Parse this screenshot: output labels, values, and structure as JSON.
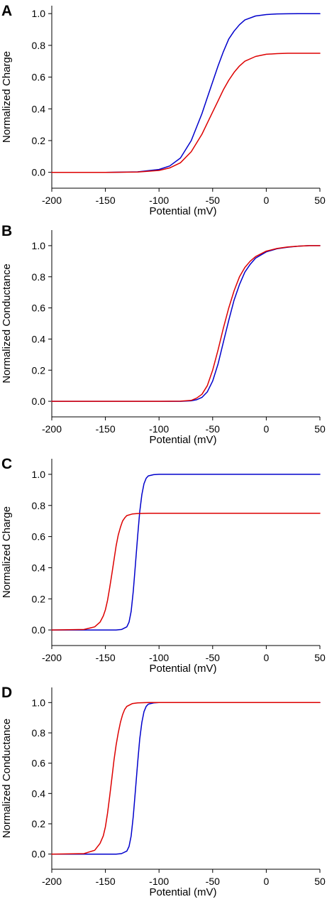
{
  "chart_data": [
    {
      "panel": "A",
      "type": "line",
      "xlabel": "Potential (mV)",
      "ylabel": "Normalized Charge",
      "xlim": [
        -200,
        50
      ],
      "ylim": [
        -0.1,
        1.05
      ],
      "xticks": [
        -200,
        -150,
        -100,
        -50,
        0,
        50
      ],
      "xtick_labels": [
        "-200",
        "-150",
        "-100",
        "-50",
        "0",
        "50"
      ],
      "yticks": [
        0.0,
        0.2,
        0.4,
        0.6,
        0.8,
        1.0
      ],
      "ytick_labels": [
        "0.0",
        "0.2",
        "0.4",
        "0.6",
        "0.8",
        "1.0"
      ],
      "grid": false,
      "series": [
        {
          "color": "#0000cc",
          "x": [
            -200,
            -150,
            -120,
            -100,
            -90,
            -80,
            -70,
            -60,
            -55,
            -50,
            -45,
            -40,
            -35,
            -30,
            -25,
            -20,
            -10,
            0,
            10,
            20,
            30,
            40,
            50
          ],
          "y": [
            0.0,
            0.0,
            0.003,
            0.018,
            0.04,
            0.09,
            0.2,
            0.37,
            0.47,
            0.57,
            0.67,
            0.76,
            0.84,
            0.89,
            0.93,
            0.96,
            0.985,
            0.994,
            0.998,
            0.999,
            1.0,
            1.0,
            1.0
          ]
        },
        {
          "color": "#dd0000",
          "x": [
            -200,
            -150,
            -120,
            -100,
            -90,
            -80,
            -70,
            -60,
            -55,
            -50,
            -45,
            -40,
            -35,
            -30,
            -25,
            -20,
            -10,
            0,
            10,
            20,
            30,
            40,
            50
          ],
          "y": [
            0.0,
            0.0,
            0.002,
            0.012,
            0.028,
            0.06,
            0.13,
            0.24,
            0.31,
            0.38,
            0.45,
            0.52,
            0.58,
            0.63,
            0.67,
            0.7,
            0.73,
            0.744,
            0.748,
            0.75,
            0.75,
            0.75,
            0.75
          ]
        }
      ]
    },
    {
      "panel": "B",
      "type": "line",
      "xlabel": "Potential (mV)",
      "ylabel": "Normalized Conductance",
      "xlim": [
        -200,
        50
      ],
      "ylim": [
        -0.1,
        1.1
      ],
      "xticks": [
        -200,
        -150,
        -100,
        -50,
        0,
        50
      ],
      "xtick_labels": [
        "-200",
        "-150",
        "-100",
        "-50",
        "0",
        "50"
      ],
      "yticks": [
        0.0,
        0.2,
        0.4,
        0.6,
        0.8,
        1.0
      ],
      "ytick_labels": [
        "0.0",
        "0.2",
        "0.4",
        "0.6",
        "0.8",
        "1.0"
      ],
      "grid": false,
      "series": [
        {
          "color": "#0000cc",
          "x": [
            -200,
            -100,
            -80,
            -70,
            -65,
            -60,
            -55,
            -50,
            -45,
            -40,
            -35,
            -30,
            -25,
            -20,
            -15,
            -10,
            0,
            10,
            20,
            30,
            40,
            50
          ],
          "y": [
            0.0,
            0.0,
            0.0,
            0.003,
            0.01,
            0.025,
            0.06,
            0.13,
            0.24,
            0.38,
            0.52,
            0.65,
            0.75,
            0.83,
            0.88,
            0.92,
            0.96,
            0.98,
            0.99,
            0.997,
            1.0,
            1.0
          ]
        },
        {
          "color": "#dd0000",
          "x": [
            -200,
            -100,
            -80,
            -70,
            -65,
            -60,
            -55,
            -50,
            -45,
            -40,
            -35,
            -30,
            -25,
            -20,
            -15,
            -10,
            0,
            10,
            20,
            30,
            40,
            50
          ],
          "y": [
            0.0,
            0.0,
            0.001,
            0.006,
            0.02,
            0.045,
            0.1,
            0.2,
            0.33,
            0.47,
            0.6,
            0.71,
            0.8,
            0.86,
            0.9,
            0.93,
            0.965,
            0.982,
            0.992,
            0.997,
            1.0,
            1.0
          ]
        }
      ]
    },
    {
      "panel": "C",
      "type": "line",
      "xlabel": "Potential (mV)",
      "ylabel": "Normalized Charge",
      "xlim": [
        -200,
        50
      ],
      "ylim": [
        -0.1,
        1.1
      ],
      "xticks": [
        -200,
        -150,
        -100,
        -50,
        0,
        50
      ],
      "xtick_labels": [
        "-200",
        "-150",
        "-100",
        "-50",
        "0",
        "50"
      ],
      "yticks": [
        0.0,
        0.2,
        0.4,
        0.6,
        0.8,
        1.0
      ],
      "ytick_labels": [
        "0.0",
        "0.2",
        "0.4",
        "0.6",
        "0.8",
        "1.0"
      ],
      "grid": false,
      "series": [
        {
          "color": "#0000cc",
          "x": [
            -200,
            -140,
            -135,
            -130,
            -128,
            -126,
            -124,
            -122,
            -120,
            -118,
            -116,
            -114,
            -112,
            -110,
            -105,
            -100,
            0,
            50
          ],
          "y": [
            0.0,
            0.0,
            0.003,
            0.02,
            0.05,
            0.12,
            0.25,
            0.42,
            0.6,
            0.76,
            0.87,
            0.94,
            0.975,
            0.99,
            0.998,
            1.0,
            1.0,
            1.0
          ]
        },
        {
          "color": "#dd0000",
          "x": [
            -200,
            -170,
            -160,
            -155,
            -152,
            -150,
            -148,
            -146,
            -144,
            -142,
            -140,
            -138,
            -136,
            -134,
            -132,
            -130,
            -125,
            -120,
            -110,
            0,
            50
          ],
          "y": [
            0.0,
            0.003,
            0.02,
            0.05,
            0.09,
            0.13,
            0.19,
            0.27,
            0.36,
            0.45,
            0.54,
            0.61,
            0.66,
            0.7,
            0.72,
            0.735,
            0.745,
            0.748,
            0.75,
            0.75,
            0.75
          ]
        }
      ]
    },
    {
      "panel": "D",
      "type": "line",
      "xlabel": "Potential (mV)",
      "ylabel": "Normalized Conductance",
      "xlim": [
        -200,
        50
      ],
      "ylim": [
        -0.1,
        1.1
      ],
      "xticks": [
        -200,
        -150,
        -100,
        -50,
        0,
        50
      ],
      "xtick_labels": [
        "-200",
        "-150",
        "-100",
        "-50",
        "0",
        "50"
      ],
      "yticks": [
        0.0,
        0.2,
        0.4,
        0.6,
        0.8,
        1.0
      ],
      "ytick_labels": [
        "0.0",
        "0.2",
        "0.4",
        "0.6",
        "0.8",
        "1.0"
      ],
      "grid": false,
      "series": [
        {
          "color": "#0000cc",
          "x": [
            -200,
            -140,
            -135,
            -130,
            -128,
            -126,
            -124,
            -122,
            -120,
            -118,
            -116,
            -114,
            -112,
            -110,
            -105,
            -100,
            0,
            50
          ],
          "y": [
            0.0,
            0.0,
            0.003,
            0.02,
            0.05,
            0.12,
            0.25,
            0.42,
            0.6,
            0.76,
            0.87,
            0.94,
            0.975,
            0.99,
            0.998,
            1.0,
            1.0,
            1.0
          ]
        },
        {
          "color": "#dd0000",
          "x": [
            -200,
            -170,
            -160,
            -155,
            -152,
            -150,
            -148,
            -146,
            -144,
            -142,
            -140,
            -138,
            -136,
            -134,
            -132,
            -130,
            -125,
            -120,
            -110,
            0,
            50
          ],
          "y": [
            0.0,
            0.003,
            0.025,
            0.07,
            0.12,
            0.18,
            0.27,
            0.38,
            0.5,
            0.62,
            0.72,
            0.8,
            0.87,
            0.92,
            0.955,
            0.975,
            0.993,
            0.998,
            1.0,
            1.0,
            1.0
          ]
        }
      ]
    }
  ]
}
